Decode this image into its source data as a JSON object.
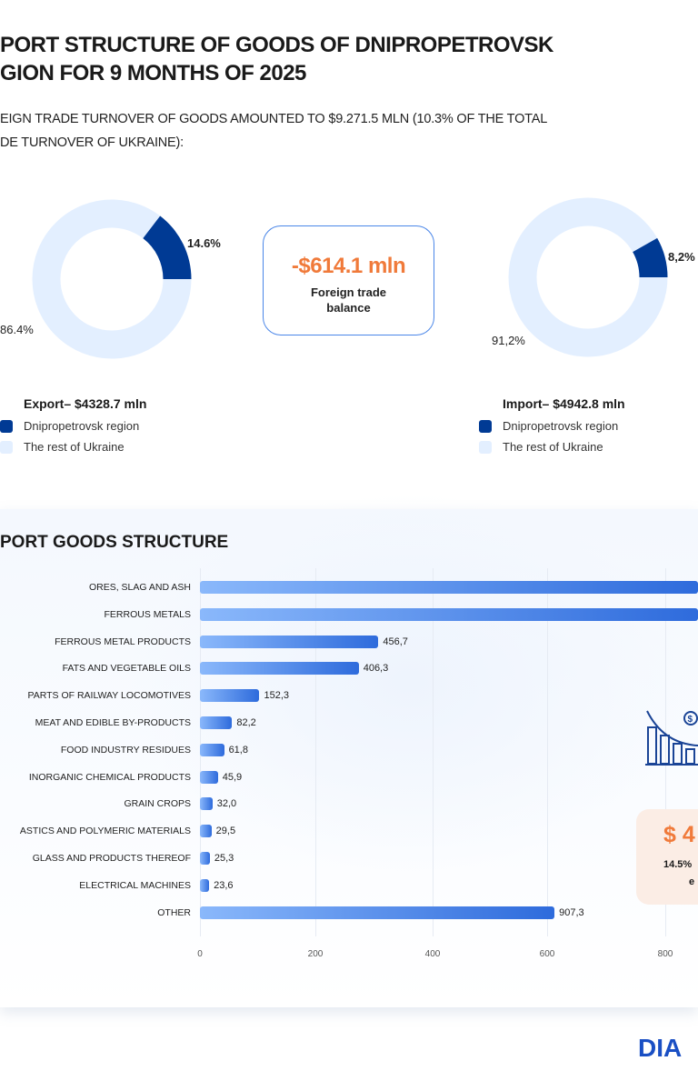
{
  "header": {
    "title_line1": "PORT STRUCTURE OF GOODS OF DNIPROPETROVSK",
    "title_line2": "GION FOR 9 MONTHS OF 2025",
    "subtitle_line1": "EIGN TRADE TURNOVER OF GOODS AMOUNTED TO $9.271.5 MLN (10.3% OF THE TOTAL",
    "subtitle_line2": "DE TURNOVER OF UKRAINE):"
  },
  "balance": {
    "value": "-$614.1 mln",
    "label_line1": "Foreign trade",
    "label_line2": "balance"
  },
  "colors": {
    "region": "#003a94",
    "rest": "#e3efff",
    "accent": "#f07a3a",
    "bar_start": "#8ab8fb",
    "bar_end": "#2e6bdc"
  },
  "chart_data": [
    {
      "type": "pie",
      "title": "Export– $4328.7 mln",
      "legend": [
        "Dnipropetrovsk region",
        "The rest of Ukraine"
      ],
      "values": [
        14.6,
        86.4
      ],
      "labels": [
        "14.6%",
        "86.4%"
      ]
    },
    {
      "type": "pie",
      "title": "Import– $4942.8 mln",
      "legend": [
        "Dnipropetrovsk region",
        "The rest of Ukraine"
      ],
      "values": [
        8.2,
        91.2
      ],
      "labels": [
        "8,2%",
        "91,2%"
      ]
    },
    {
      "type": "bar",
      "orientation": "horizontal",
      "title": "PORT GOODS STRUCTURE",
      "categories": [
        "ORES, SLAG AND ASH",
        "FERROUS METALS",
        "FERROUS METAL PRODUCTS",
        "FATS AND VEGETABLE OILS",
        "PARTS OF RAILWAY LOCOMOTIVES",
        "MEAT AND EDIBLE BY-PRODUCTS",
        "FOOD INDUSTRY RESIDUES",
        "INORGANIC CHEMICAL PRODUCTS",
        "GRAIN CROPS",
        "ASTICS AND POLYMERIC MATERIALS",
        "GLASS AND PRODUCTS THEREOF",
        "ELECTRICAL MACHINES",
        "OTHER"
      ],
      "values": [
        null,
        null,
        456.7,
        406.3,
        152.3,
        82.2,
        61.8,
        45.9,
        32.0,
        29.5,
        25.3,
        23.6,
        907.3
      ],
      "value_labels": [
        "",
        "",
        "456,7",
        "406,3",
        "152,3",
        "82,2",
        "61,8",
        "45,9",
        "32,0",
        "29,5",
        "25,3",
        "23,6",
        "907,3"
      ],
      "xticks": [
        "0",
        "200",
        "400",
        "600",
        "800"
      ],
      "grid": true
    }
  ],
  "callout": {
    "value": "$ 4",
    "share": "14.5%",
    "share_tail": "e",
    "icon": "chart-decline-dollar-icon"
  },
  "logo": "DIA"
}
